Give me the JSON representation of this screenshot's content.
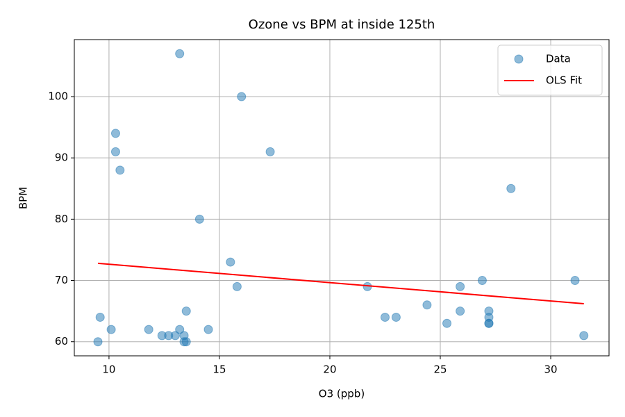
{
  "chart_data": {
    "type": "scatter",
    "title": "Ozone vs BPM at inside 125th",
    "x_label": "O3 (ppb)",
    "y_label": "BPM",
    "xlim": [
      8.43,
      32.64
    ],
    "ylim": [
      57.7,
      109.3
    ],
    "xticks": [
      10,
      15,
      20,
      25,
      30
    ],
    "yticks": [
      60,
      70,
      80,
      90,
      100
    ],
    "grid": true,
    "legend": "upper right",
    "series": [
      {
        "name": "Data",
        "color": "#1f77b4",
        "x": [
          9.5,
          9.6,
          10.1,
          10.3,
          10.3,
          10.5,
          11.8,
          12.4,
          12.7,
          13.0,
          13.2,
          13.2,
          13.4,
          13.4,
          13.5,
          13.5,
          14.1,
          14.5,
          15.5,
          15.8,
          16.0,
          17.3,
          21.7,
          22.5,
          23.0,
          24.4,
          25.3,
          25.9,
          25.9,
          26.9,
          27.2,
          27.2,
          27.2,
          27.2,
          28.2,
          31.1,
          31.5
        ],
        "values": [
          60,
          64,
          62,
          94,
          91,
          88,
          62,
          61,
          61,
          61,
          107,
          62,
          61,
          60,
          60,
          65,
          80,
          62,
          73,
          69,
          100,
          91,
          69,
          64,
          64,
          66,
          63,
          69,
          65,
          70,
          65,
          64,
          63,
          63,
          85,
          70,
          61
        ]
      },
      {
        "name": "OLS Fit",
        "color": "#ff0000",
        "type": "line",
        "x": [
          9.5,
          31.5
        ],
        "values": [
          72.8,
          66.2
        ]
      }
    ]
  }
}
